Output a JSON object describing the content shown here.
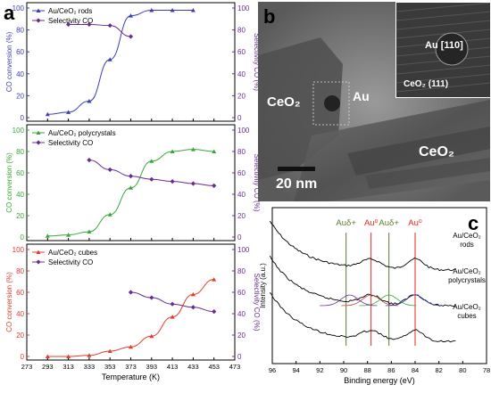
{
  "panel_labels": {
    "a": "a",
    "b": "b",
    "c": "c"
  },
  "tem": {
    "scale_bar": "20 nm",
    "labels": {
      "ceo2_left": "CeO₂",
      "au": "Au",
      "ceo2_right": "CeO₂"
    },
    "inset": {
      "au_plane": "Au [110]",
      "ceo2_plane": "CeO₂ (111)"
    }
  },
  "colors": {
    "rods": "#3d3db4",
    "polycrystals": "#3aa63a",
    "cubes": "#e23d2c",
    "selectivity": "#6a2c91",
    "au0_line": "#e8261d",
    "audelta_line": "#5a7a2a"
  },
  "chart_data": [
    {
      "type": "line",
      "panel": "a-top",
      "x_ticks": [
        "273",
        "293",
        "313",
        "333",
        "353",
        "373",
        "393",
        "413",
        "433",
        "453",
        "473"
      ],
      "xlim": [
        273,
        473
      ],
      "ylabel": "CO conversion (%)",
      "ylabel_right": "Selectivity CO (%)",
      "ylim": [
        0,
        100
      ],
      "y_ticks": [
        "0",
        "20",
        "40",
        "60",
        "80",
        "100"
      ],
      "series": [
        {
          "name": "Au/CeO₂ rods",
          "axis": "left",
          "x": [
            293,
            313,
            333,
            353,
            373,
            393,
            413,
            433
          ],
          "y": [
            3,
            5,
            15,
            53,
            93,
            98,
            98,
            98
          ]
        },
        {
          "name": "Selectivity CO",
          "axis": "right",
          "x": [
            313,
            333,
            353,
            373
          ],
          "y": [
            85,
            85,
            84,
            74
          ]
        }
      ]
    },
    {
      "type": "line",
      "panel": "a-middle",
      "x_ticks": [
        "273",
        "293",
        "313",
        "333",
        "353",
        "373",
        "393",
        "413",
        "433",
        "453",
        "473"
      ],
      "xlim": [
        273,
        473
      ],
      "ylabel": "CO conversion (%)",
      "ylabel_right": "Selectivity CO (%)",
      "ylim": [
        0,
        100
      ],
      "y_ticks": [
        "0",
        "20",
        "40",
        "60",
        "80",
        "100"
      ],
      "series": [
        {
          "name": "Au/CeO₂ polycrystals",
          "axis": "left",
          "x": [
            293,
            313,
            333,
            353,
            373,
            393,
            413,
            433,
            453
          ],
          "y": [
            1,
            2,
            5,
            21,
            46,
            71,
            80,
            82,
            80
          ]
        },
        {
          "name": "Selectivity CO",
          "axis": "right",
          "x": [
            333,
            353,
            373,
            393,
            413,
            433,
            453
          ],
          "y": [
            72,
            63,
            57,
            54,
            52,
            50,
            48
          ]
        }
      ]
    },
    {
      "type": "line",
      "panel": "a-bottom",
      "x_ticks": [
        "273",
        "293",
        "313",
        "333",
        "353",
        "373",
        "393",
        "413",
        "433",
        "453",
        "473"
      ],
      "xlim": [
        273,
        473
      ],
      "xlabel": "Temperature (K)",
      "ylabel": "CO conversion (%)",
      "ylabel_right": "Selectivity CO (%)",
      "ylim": [
        0,
        100
      ],
      "y_ticks": [
        "0",
        "20",
        "40",
        "60",
        "80",
        "100"
      ],
      "series": [
        {
          "name": "Au/CeO₂ cubes",
          "axis": "left",
          "x": [
            293,
            313,
            333,
            353,
            373,
            393,
            413,
            433,
            453
          ],
          "y": [
            0,
            0,
            1,
            5,
            9,
            19,
            37,
            58,
            72
          ]
        },
        {
          "name": "Selectivity CO",
          "axis": "right",
          "x": [
            373,
            393,
            413,
            433,
            453
          ],
          "y": [
            60,
            55,
            49,
            46,
            42
          ]
        }
      ]
    },
    {
      "type": "line",
      "panel": "c",
      "xlabel": "Binding energy (eV)",
      "ylabel": "Intensity (a.u.)",
      "xlim": [
        96,
        78
      ],
      "x_ticks": [
        "96",
        "94",
        "92",
        "90",
        "88",
        "86",
        "84",
        "82",
        "80",
        "78"
      ],
      "peak_labels": [
        {
          "text": "Auδ+",
          "be": 89.8
        },
        {
          "text": "Au⁰",
          "be": 87.7
        },
        {
          "text": "Auδ+",
          "be": 86.2
        },
        {
          "text": "Au⁰",
          "be": 84.0
        }
      ],
      "series": [
        {
          "name": "Au/CeO₂ rods"
        },
        {
          "name": "Au/CeO₂ polycrystals"
        },
        {
          "name": "Au/CeO₂ cubes"
        }
      ]
    }
  ]
}
